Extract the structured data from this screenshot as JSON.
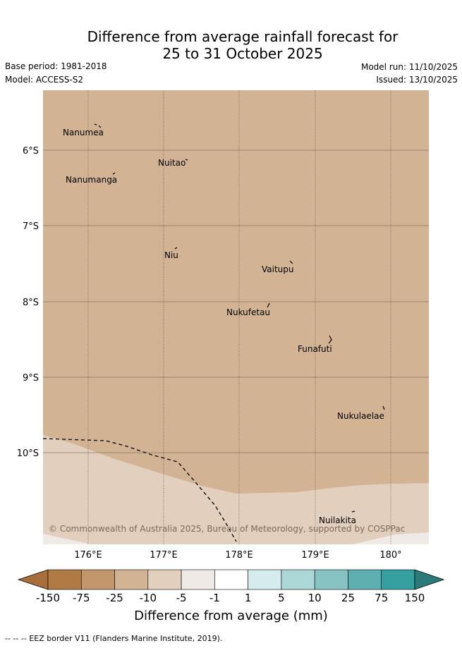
{
  "title": {
    "line1": "Difference from average rainfall forecast for",
    "line2": "25 to 31 October 2025"
  },
  "meta": {
    "base_period": "Base period: 1981-2018",
    "model": "Model: ACCESS-S2",
    "model_run": "Model run: 11/10/2025",
    "issued": "Issued: 13/10/2025"
  },
  "map": {
    "lat_labels": [
      "6°S",
      "7°S",
      "8°S",
      "9°S",
      "10°S"
    ],
    "lon_labels": [
      "176°E",
      "177°E",
      "178°E",
      "179°E",
      "180°"
    ],
    "places": [
      "Nanumea",
      "Nuitao",
      "Nanumanga",
      "Niu",
      "Vaitupu",
      "Nukufetau",
      "Funafuti",
      "Nukulaelae",
      "Nuilakita"
    ],
    "copyright": "© Commonwealth of Australia 2025, Bureau of Meteorology, supported by COSPPac",
    "colors": {
      "dry_10_25": "#d2b393",
      "dry_5_10": "#e2cfbe",
      "dry_1_5": "#f0eae6"
    }
  },
  "colorbar": {
    "ticks": [
      "-150",
      "-75",
      "-25",
      "-10",
      "-5",
      "-1",
      "1",
      "5",
      "10",
      "25",
      "75",
      "150"
    ],
    "colors": [
      "#a86f3a",
      "#b07a45",
      "#c2976b",
      "#d2b393",
      "#e2cfbe",
      "#f0eae6",
      "#ffffff",
      "#d6ecec",
      "#acd8d8",
      "#88c3c3",
      "#5eb0b0",
      "#36a0a0",
      "#2a7a7a"
    ],
    "label": "Difference from average (mm)"
  },
  "legend_note": "-- -- -- EEZ border V11 (Flanders Marine Institute, 2019)."
}
